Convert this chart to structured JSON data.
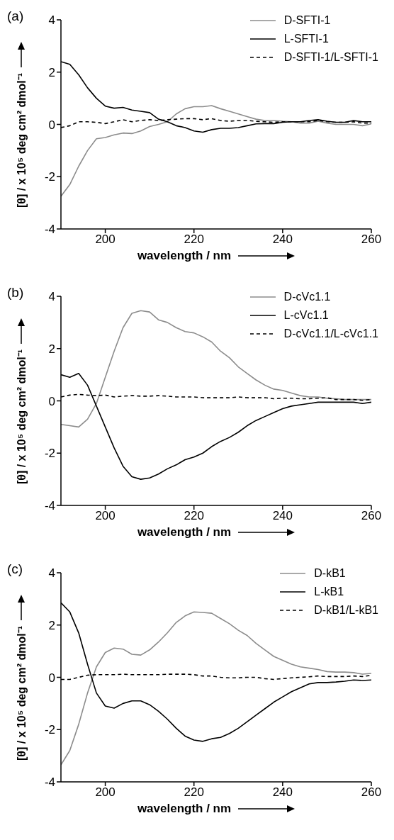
{
  "chart_data": [
    {
      "type": "line",
      "title": "(a)",
      "xlabel": "wavelength / nm",
      "ylabel": "[θ] / x 10⁵ deg cm² dmol⁻¹",
      "xlim": [
        190,
        260
      ],
      "xticks": [
        200,
        220,
        240,
        260
      ],
      "ylim": [
        -4,
        4
      ],
      "yticks": [
        -4,
        -2,
        0,
        2,
        4
      ],
      "legend": "top right",
      "marker": "none",
      "x": [
        190,
        192,
        194,
        196,
        198,
        200,
        202,
        204,
        206,
        208,
        210,
        212,
        214,
        216,
        218,
        220,
        222,
        224,
        226,
        228,
        230,
        232,
        234,
        236,
        238,
        240,
        242,
        244,
        246,
        248,
        250,
        252,
        254,
        256,
        258,
        260
      ],
      "series": [
        {
          "name": "D-SFTI-1",
          "color": "#8c8c8c",
          "line_style": "solid",
          "values": [
            -2.75,
            -2.3,
            -1.6,
            -1.0,
            -0.55,
            -0.5,
            -0.4,
            -0.33,
            -0.35,
            -0.25,
            -0.08,
            0.0,
            0.1,
            0.4,
            0.6,
            0.68,
            0.68,
            0.72,
            0.6,
            0.5,
            0.4,
            0.3,
            0.2,
            0.15,
            0.15,
            0.12,
            0.1,
            0.05,
            0.05,
            0.12,
            0.05,
            0.0,
            0.0,
            0.0,
            -0.05,
            0.02
          ]
        },
        {
          "name": "L-SFTI-1",
          "color": "#000000",
          "line_style": "solid",
          "values": [
            2.4,
            2.3,
            1.9,
            1.4,
            1.0,
            0.7,
            0.62,
            0.65,
            0.55,
            0.5,
            0.45,
            0.2,
            0.1,
            -0.05,
            -0.12,
            -0.25,
            -0.3,
            -0.2,
            -0.15,
            -0.15,
            -0.12,
            -0.05,
            0.02,
            0.03,
            0.03,
            0.08,
            0.1,
            0.1,
            0.15,
            0.18,
            0.12,
            0.08,
            0.08,
            0.15,
            0.1,
            0.1
          ]
        },
        {
          "name": "D-SFTI-1/L-SFTI-1",
          "color": "#000000",
          "line_style": "dashed",
          "values": [
            -0.12,
            -0.05,
            0.1,
            0.1,
            0.08,
            0.03,
            0.1,
            0.18,
            0.1,
            0.15,
            0.18,
            0.15,
            0.18,
            0.2,
            0.22,
            0.22,
            0.18,
            0.22,
            0.15,
            0.12,
            0.15,
            0.15,
            0.12,
            0.1,
            0.08,
            0.1,
            0.1,
            0.1,
            0.1,
            0.15,
            0.1,
            0.08,
            0.08,
            0.1,
            0.05,
            0.05
          ]
        }
      ]
    },
    {
      "type": "line",
      "title": "(b)",
      "xlabel": "wavelength / nm",
      "ylabel": "[θ] / x 10⁵ deg cm² dmol⁻¹",
      "xlim": [
        190,
        260
      ],
      "xticks": [
        200,
        220,
        240,
        260
      ],
      "ylim": [
        -4,
        4
      ],
      "yticks": [
        -4,
        -2,
        0,
        2,
        4
      ],
      "legend": "top right",
      "marker": "none",
      "x": [
        190,
        192,
        194,
        196,
        198,
        200,
        202,
        204,
        206,
        208,
        210,
        212,
        214,
        216,
        218,
        220,
        222,
        224,
        226,
        228,
        230,
        232,
        234,
        236,
        238,
        240,
        242,
        244,
        246,
        248,
        250,
        252,
        254,
        256,
        258,
        260
      ],
      "series": [
        {
          "name": "D-cVc1.1",
          "color": "#8c8c8c",
          "line_style": "solid",
          "values": [
            -0.9,
            -0.95,
            -1.0,
            -0.7,
            -0.1,
            0.9,
            1.9,
            2.8,
            3.35,
            3.45,
            3.4,
            3.1,
            3.0,
            2.8,
            2.65,
            2.6,
            2.45,
            2.25,
            1.9,
            1.65,
            1.3,
            1.05,
            0.8,
            0.6,
            0.45,
            0.4,
            0.3,
            0.2,
            0.15,
            0.15,
            0.1,
            0.08,
            0.05,
            0.05,
            0.05,
            0.05
          ]
        },
        {
          "name": "L-cVc1.1",
          "color": "#000000",
          "line_style": "solid",
          "values": [
            1.0,
            0.9,
            1.05,
            0.6,
            -0.2,
            -1.0,
            -1.8,
            -2.5,
            -2.9,
            -3.0,
            -2.95,
            -2.8,
            -2.6,
            -2.45,
            -2.25,
            -2.15,
            -2.0,
            -1.75,
            -1.55,
            -1.4,
            -1.2,
            -0.95,
            -0.75,
            -0.6,
            -0.45,
            -0.3,
            -0.2,
            -0.15,
            -0.1,
            -0.05,
            -0.05,
            -0.05,
            -0.05,
            -0.05,
            -0.1,
            -0.05
          ]
        },
        {
          "name": "D-cVc1.1/L-cVc1.1",
          "color": "#000000",
          "line_style": "dashed",
          "values": [
            0.15,
            0.22,
            0.25,
            0.22,
            0.2,
            0.22,
            0.15,
            0.18,
            0.2,
            0.18,
            0.18,
            0.2,
            0.18,
            0.15,
            0.15,
            0.15,
            0.12,
            0.12,
            0.12,
            0.12,
            0.15,
            0.12,
            0.12,
            0.12,
            0.08,
            0.1,
            0.1,
            0.08,
            0.08,
            0.1,
            0.12,
            0.05,
            0.05,
            0.05,
            0.02,
            0.05
          ]
        }
      ]
    },
    {
      "type": "line",
      "title": "(c)",
      "xlabel": "wavelength / nm",
      "ylabel": "[θ] / x 10⁵ deg cm² dmol⁻¹",
      "xlim": [
        190,
        260
      ],
      "xticks": [
        200,
        220,
        240,
        260
      ],
      "ylim": [
        -4,
        4
      ],
      "yticks": [
        -4,
        -2,
        0,
        2,
        4
      ],
      "legend": "top right",
      "marker": "none",
      "x": [
        190,
        192,
        194,
        196,
        198,
        200,
        202,
        204,
        206,
        208,
        210,
        212,
        214,
        216,
        218,
        220,
        222,
        224,
        226,
        228,
        230,
        232,
        234,
        236,
        238,
        240,
        242,
        244,
        246,
        248,
        250,
        252,
        254,
        256,
        258,
        260
      ],
      "series": [
        {
          "name": "D-kB1",
          "color": "#8c8c8c",
          "line_style": "solid",
          "values": [
            -3.35,
            -2.8,
            -1.8,
            -0.6,
            0.4,
            0.95,
            1.12,
            1.08,
            0.88,
            0.85,
            1.05,
            1.35,
            1.7,
            2.1,
            2.35,
            2.5,
            2.48,
            2.45,
            2.25,
            2.05,
            1.8,
            1.6,
            1.3,
            1.05,
            0.8,
            0.65,
            0.5,
            0.4,
            0.35,
            0.3,
            0.22,
            0.2,
            0.2,
            0.18,
            0.12,
            0.15
          ]
        },
        {
          "name": "L-kB1",
          "color": "#000000",
          "line_style": "solid",
          "values": [
            2.85,
            2.5,
            1.7,
            0.5,
            -0.6,
            -1.1,
            -1.18,
            -1.0,
            -0.9,
            -0.9,
            -1.05,
            -1.3,
            -1.6,
            -1.95,
            -2.25,
            -2.4,
            -2.45,
            -2.35,
            -2.3,
            -2.15,
            -1.95,
            -1.7,
            -1.45,
            -1.2,
            -0.95,
            -0.75,
            -0.55,
            -0.4,
            -0.25,
            -0.2,
            -0.2,
            -0.18,
            -0.15,
            -0.1,
            -0.12,
            -0.1
          ]
        },
        {
          "name": "D-kB1/L-kB1",
          "color": "#000000",
          "line_style": "dashed",
          "values": [
            -0.08,
            -0.08,
            0.0,
            0.08,
            0.1,
            0.1,
            0.1,
            0.12,
            0.1,
            0.1,
            0.1,
            0.1,
            0.12,
            0.12,
            0.12,
            0.1,
            0.05,
            0.05,
            0.0,
            -0.02,
            -0.02,
            0.0,
            0.0,
            -0.05,
            -0.08,
            -0.05,
            -0.02,
            0.0,
            0.02,
            0.05,
            0.03,
            0.03,
            0.03,
            0.05,
            0.03,
            0.08
          ]
        }
      ]
    }
  ]
}
